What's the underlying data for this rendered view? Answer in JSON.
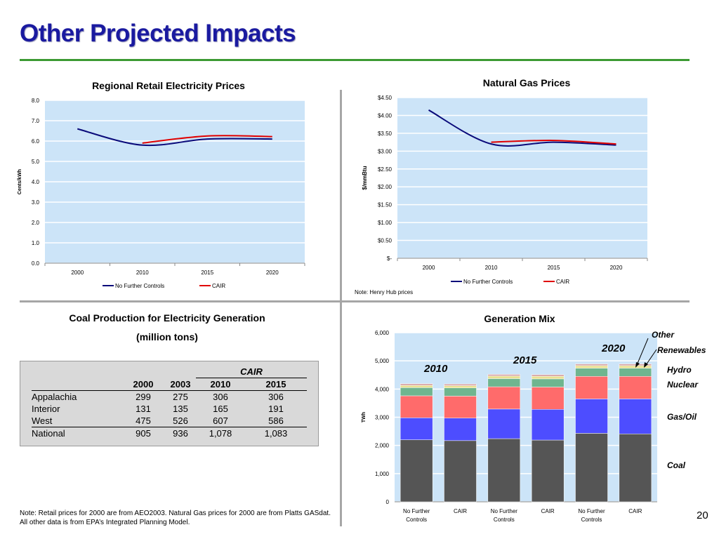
{
  "page": {
    "title": "Other Projected Impacts",
    "page_number": "20",
    "footnote": "Note: Retail prices for 2000 are from AEO2003. Natural Gas prices for 2000 are from Platts GASdat.  All other data is from EPA’s Integrated Planning Model."
  },
  "colors": {
    "title": "#1a1aa0",
    "rule": "#3c9a33",
    "plot_bg": "#cce4f8",
    "no_further_controls": "#0a0a7a",
    "cair": "#e00000"
  },
  "chart_data": [
    {
      "id": "retail",
      "type": "line",
      "title": "Regional Retail Electricity Prices",
      "xlabel": "",
      "ylabel": "Cents/kWh",
      "categories": [
        "2000",
        "2010",
        "2015",
        "2020"
      ],
      "ylim": [
        0,
        8
      ],
      "yticks": [
        "0.0",
        "1.0",
        "2.0",
        "3.0",
        "4.0",
        "5.0",
        "6.0",
        "7.0",
        "8.0"
      ],
      "legend_position": "bottom",
      "grid": true,
      "series": [
        {
          "name": "No Further Controls",
          "values": [
            6.6,
            5.8,
            6.1,
            6.1
          ]
        },
        {
          "name": "CAIR",
          "values": [
            null,
            5.9,
            6.25,
            6.22
          ]
        }
      ]
    },
    {
      "id": "gas",
      "type": "line",
      "title": "Natural Gas Prices",
      "xlabel": "",
      "ylabel": "$/mmBtu",
      "categories": [
        "2000",
        "2010",
        "2015",
        "2020"
      ],
      "ylim": [
        0,
        4.5
      ],
      "yticks": [
        "$-",
        "$0.50",
        "$1.00",
        "$1.50",
        "$2.00",
        "$2.50",
        "$3.00",
        "$3.50",
        "$4.00",
        "$4.50"
      ],
      "legend_position": "bottom",
      "grid": true,
      "note": "Note: Henry Hub prices",
      "series": [
        {
          "name": "No Further Controls",
          "values": [
            4.15,
            3.2,
            3.25,
            3.17
          ]
        },
        {
          "name": "CAIR",
          "values": [
            null,
            3.25,
            3.3,
            3.2
          ]
        }
      ]
    },
    {
      "id": "genmix",
      "type": "bar",
      "stacked": true,
      "title": "Generation Mix",
      "xlabel": "",
      "ylabel": "TWh",
      "ylim": [
        0,
        6000
      ],
      "yticks": [
        "0",
        "1,000",
        "2,000",
        "3,000",
        "4,000",
        "5,000",
        "6,000"
      ],
      "grid": true,
      "categories": [
        [
          "No Further",
          "Controls"
        ],
        [
          "CAIR"
        ],
        [
          "No Further",
          "Controls"
        ],
        [
          "CAIR"
        ],
        [
          "No Further",
          "Controls"
        ],
        [
          "CAIR"
        ]
      ],
      "group_labels": [
        "2010",
        "2015",
        "2020"
      ],
      "series": [
        {
          "name": "Coal",
          "color": "#555555",
          "values": [
            2200,
            2170,
            2240,
            2190,
            2430,
            2410
          ]
        },
        {
          "name": "Gas/Oil",
          "color": "#4d4dff",
          "values": [
            780,
            800,
            1050,
            1090,
            1220,
            1240
          ]
        },
        {
          "name": "Nuclear",
          "color": "#ff6b6b",
          "values": [
            780,
            780,
            790,
            790,
            800,
            800
          ]
        },
        {
          "name": "Hydro",
          "color": "#6fb58f",
          "values": [
            290,
            290,
            290,
            290,
            290,
            290
          ]
        },
        {
          "name": "Renewables",
          "color": "#e8e090",
          "values": [
            80,
            80,
            90,
            90,
            90,
            90
          ]
        },
        {
          "name": "Other",
          "color": "#d9a8a8",
          "values": [
            60,
            60,
            60,
            60,
            60,
            60
          ]
        }
      ]
    }
  ],
  "coal_table": {
    "title_line1": "Coal Production for Electricity Generation",
    "title_line2": "(million tons)",
    "group_header": "CAIR",
    "columns": [
      "",
      "2000",
      "2003",
      "2010",
      "2015"
    ],
    "rows": [
      [
        "Appalachia",
        "299",
        "275",
        "306",
        "306"
      ],
      [
        "Interior",
        "131",
        "135",
        "165",
        "191"
      ],
      [
        "West",
        "475",
        "526",
        "607",
        "586"
      ],
      [
        "National",
        "905",
        "936",
        "1,078",
        "1,083"
      ]
    ]
  }
}
